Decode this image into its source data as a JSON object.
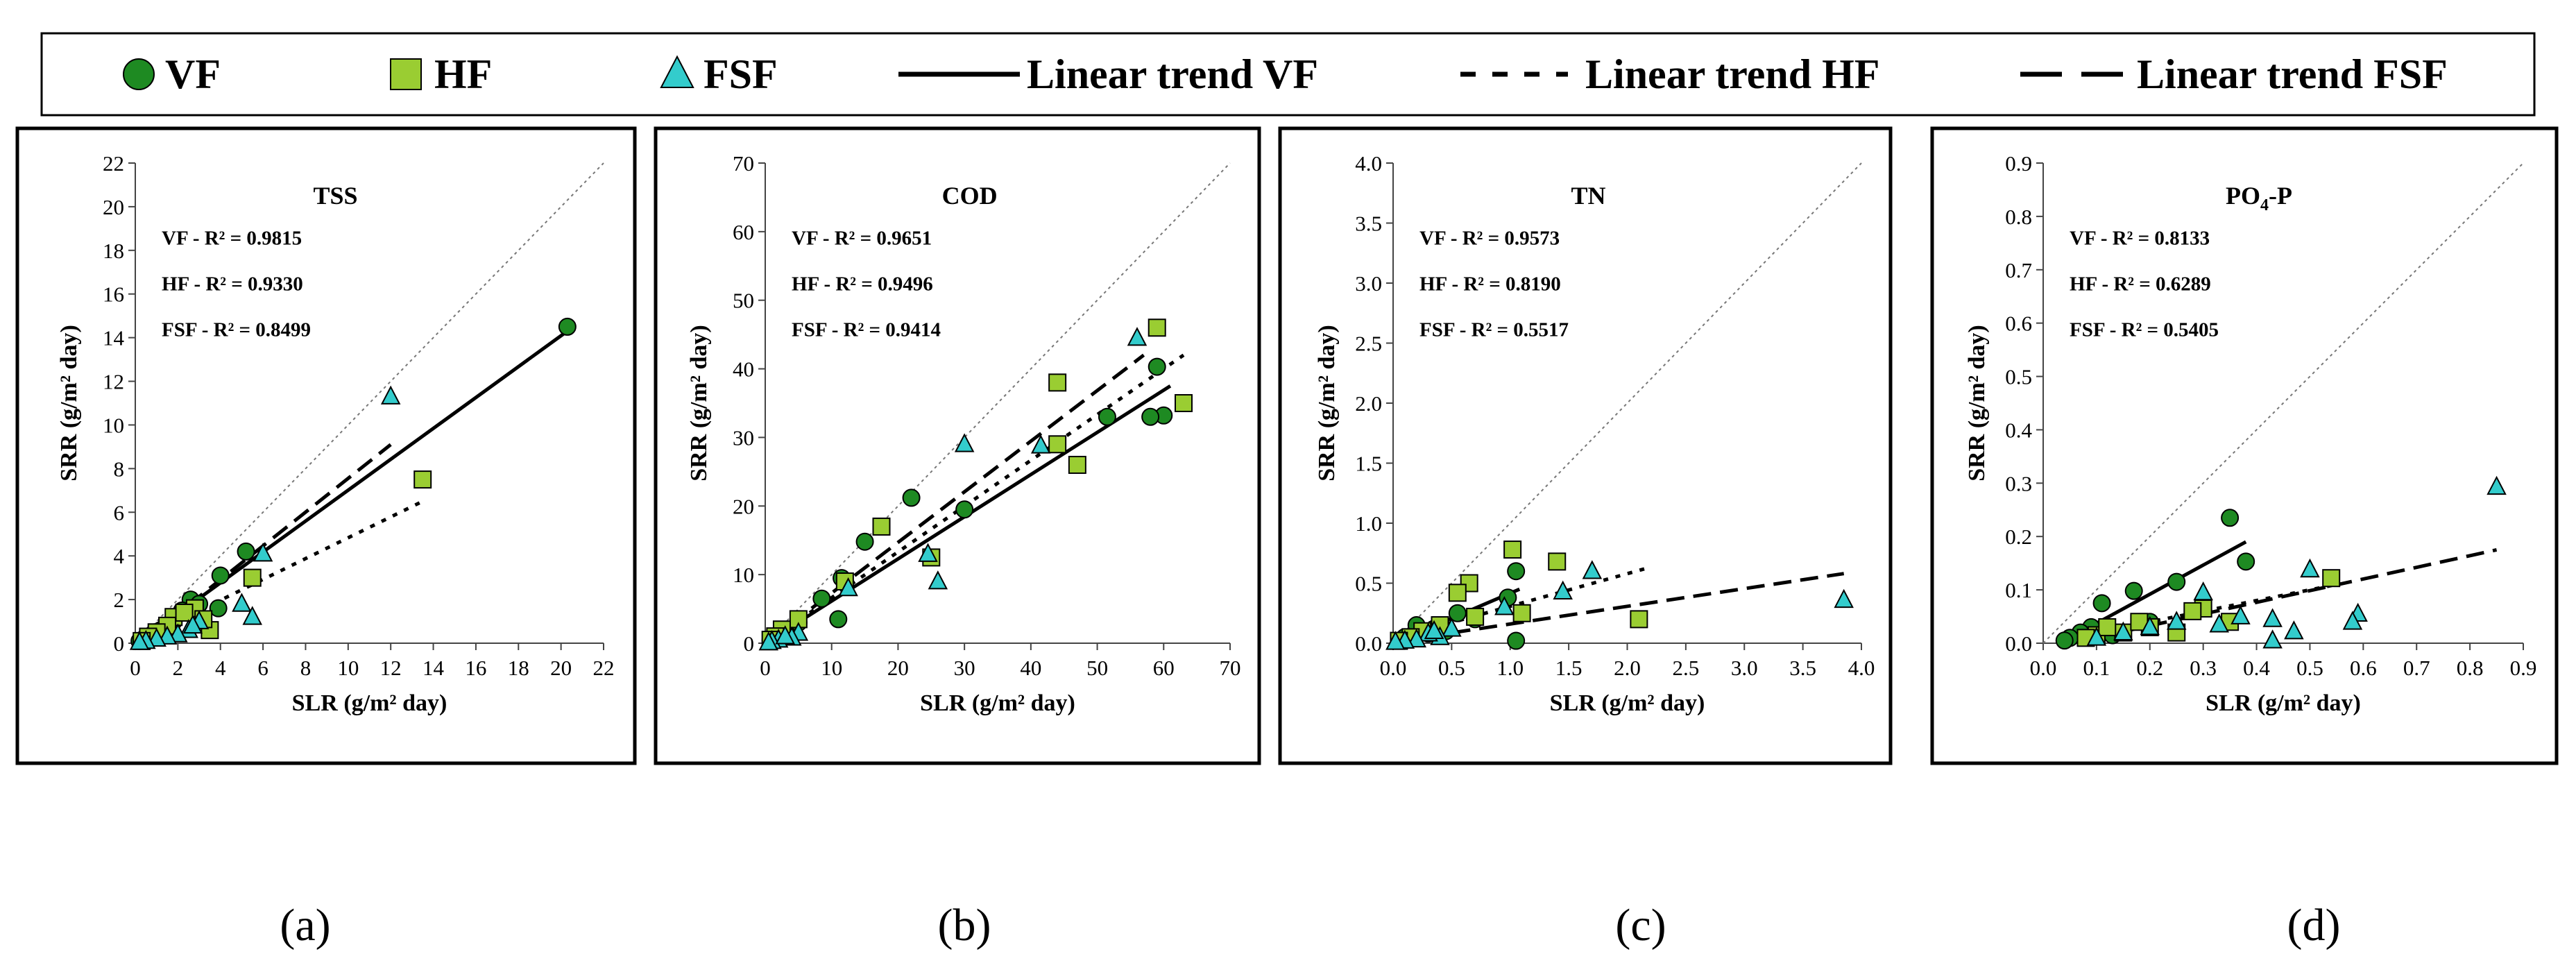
{
  "legend": {
    "items": [
      {
        "label": "VF",
        "kind": "marker",
        "shape": "circle",
        "fill": "#1e8a22"
      },
      {
        "label": "HF",
        "kind": "marker",
        "shape": "square",
        "fill": "#9acd32"
      },
      {
        "label": "FSF",
        "kind": "marker",
        "shape": "triangle",
        "fill": "#33cccc"
      },
      {
        "label": "Linear trend VF",
        "kind": "line",
        "dash": "solid"
      },
      {
        "label": "Linear trend HF",
        "kind": "line",
        "dash": "dotted"
      },
      {
        "label": "Linear trend FSF",
        "kind": "line",
        "dash": "dashed"
      }
    ]
  },
  "colors": {
    "vf": "#1e8a22",
    "hf": "#9acd32",
    "fsf": "#33cccc",
    "stroke": "#000000"
  },
  "panel_labels": [
    "(a)",
    "(b)",
    "(c)",
    "(d)"
  ],
  "chart_data": [
    {
      "type": "scatter",
      "title": "TSS",
      "xlabel": "SLR (g/m² day)",
      "ylabel": "SRR (g/m² day)",
      "xlim": [
        0,
        22
      ],
      "ylim": [
        0,
        22
      ],
      "xticks": [
        "0",
        "2",
        "4",
        "6",
        "8",
        "10",
        "12",
        "14",
        "16",
        "18",
        "20",
        "22"
      ],
      "yticks": [
        "0",
        "2",
        "4",
        "6",
        "8",
        "10",
        "12",
        "14",
        "16",
        "18",
        "20",
        "22"
      ],
      "r2": [
        "VF - R² = 0.9815",
        "HF - R² = 0.9330",
        "FSF - R² = 0.8499"
      ],
      "series": [
        {
          "name": "VF",
          "points": [
            [
              20.3,
              14.5
            ],
            [
              5.2,
              4.2
            ],
            [
              4.0,
              3.1
            ],
            [
              2.6,
              2.0
            ],
            [
              2.2,
              1.5
            ],
            [
              3.9,
              1.6
            ],
            [
              1.8,
              1.0
            ],
            [
              1.2,
              0.6
            ],
            [
              0.8,
              0.4
            ],
            [
              0.4,
              0.2
            ],
            [
              0.2,
              0.1
            ],
            [
              1.5,
              0.8
            ],
            [
              3.0,
              1.8
            ]
          ]
        },
        {
          "name": "HF",
          "points": [
            [
              13.5,
              7.5
            ],
            [
              5.5,
              3.0
            ],
            [
              3.5,
              0.6
            ],
            [
              2.8,
              1.6
            ],
            [
              1.8,
              1.2
            ],
            [
              1.5,
              0.8
            ],
            [
              2.3,
              1.4
            ],
            [
              1.0,
              0.5
            ],
            [
              0.6,
              0.3
            ],
            [
              0.3,
              0.1
            ],
            [
              3.2,
              1.1
            ]
          ]
        },
        {
          "name": "FSF",
          "points": [
            [
              12.0,
              11.3
            ],
            [
              6.0,
              4.1
            ],
            [
              5.0,
              1.8
            ],
            [
              5.5,
              1.2
            ],
            [
              2.5,
              0.6
            ],
            [
              2.0,
              0.4
            ],
            [
              1.5,
              0.3
            ],
            [
              1.0,
              0.2
            ],
            [
              0.5,
              0.1
            ],
            [
              0.2,
              0.05
            ],
            [
              3.0,
              1.0
            ],
            [
              2.7,
              0.8
            ]
          ]
        }
      ],
      "trends": [
        {
          "name": "Linear trend VF",
          "x": [
            0.8,
            20.3
          ],
          "y": [
            0.5,
            14.3
          ]
        },
        {
          "name": "Linear trend HF",
          "x": [
            0.5,
            13.5
          ],
          "y": [
            0.3,
            6.5
          ]
        },
        {
          "name": "Linear trend FSF",
          "x": [
            0.5,
            12.0
          ],
          "y": [
            0.2,
            9.1
          ]
        }
      ]
    },
    {
      "type": "scatter",
      "title": "COD",
      "xlabel": "SLR (g/m² day)",
      "ylabel": "SRR (g/m² day)",
      "xlim": [
        0,
        70
      ],
      "ylim": [
        0,
        70
      ],
      "xticks": [
        "0",
        "10",
        "20",
        "30",
        "40",
        "50",
        "60",
        "70"
      ],
      "yticks": [
        "0",
        "10",
        "20",
        "30",
        "40",
        "50",
        "60",
        "70"
      ],
      "r2": [
        "VF - R² = 0.9651",
        "HF - R² = 0.9496",
        "FSF - R² = 0.9414"
      ],
      "series": [
        {
          "name": "VF",
          "points": [
            [
              59,
              40.3
            ],
            [
              60,
              33.2
            ],
            [
              58,
              33.0
            ],
            [
              51.5,
              33.0
            ],
            [
              30,
              19.5
            ],
            [
              22,
              21.2
            ],
            [
              15,
              14.8
            ],
            [
              11.5,
              9.5
            ],
            [
              11,
              3.5
            ],
            [
              8.5,
              6.5
            ],
            [
              5,
              3.0
            ],
            [
              3,
              1.8
            ],
            [
              1.5,
              0.8
            ],
            [
              0.8,
              0.4
            ]
          ]
        },
        {
          "name": "HF",
          "points": [
            [
              59,
              46
            ],
            [
              63,
              35
            ],
            [
              44,
              38
            ],
            [
              44,
              29
            ],
            [
              47,
              26
            ],
            [
              17.5,
              17
            ],
            [
              12,
              9
            ],
            [
              5,
              3.5
            ],
            [
              2.5,
              2.0
            ],
            [
              1.5,
              1.0
            ],
            [
              0.8,
              0.5
            ],
            [
              25,
              12.5
            ]
          ]
        },
        {
          "name": "FSF",
          "points": [
            [
              56,
              44.5
            ],
            [
              41.5,
              28.8
            ],
            [
              30,
              29
            ],
            [
              26,
              9
            ],
            [
              24.5,
              13
            ],
            [
              12.5,
              8
            ],
            [
              5,
              1.5
            ],
            [
              4,
              0.8
            ],
            [
              2,
              0.5
            ],
            [
              1,
              0.3
            ],
            [
              0.5,
              0.1
            ],
            [
              3,
              1.0
            ]
          ]
        }
      ],
      "trends": [
        {
          "name": "Linear trend VF",
          "x": [
            0.5,
            61
          ],
          "y": [
            0.3,
            37.5
          ]
        },
        {
          "name": "Linear trend HF",
          "x": [
            0.5,
            63
          ],
          "y": [
            0.3,
            42
          ]
        },
        {
          "name": "Linear trend FSF",
          "x": [
            0.5,
            57
          ],
          "y": [
            0.3,
            42
          ]
        }
      ]
    },
    {
      "type": "scatter",
      "title": "TN",
      "xlabel": "SLR (g/m² day)",
      "ylabel": "SRR (g/m² day)",
      "xlim": [
        0,
        4
      ],
      "ylim": [
        0,
        4
      ],
      "xticks": [
        "0.0",
        "0.5",
        "1.0",
        "1.5",
        "2.0",
        "2.5",
        "3.0",
        "3.5",
        "4.0"
      ],
      "yticks": [
        "0.0",
        "0.5",
        "1.0",
        "1.5",
        "2.0",
        "2.5",
        "3.0",
        "3.5",
        "4.0"
      ],
      "r2": [
        "VF - R² = 0.9573",
        "HF - R² = 0.8190",
        "FSF - R² = 0.5517"
      ],
      "series": [
        {
          "name": "VF",
          "points": [
            [
              1.05,
              0.6
            ],
            [
              0.98,
              0.38
            ],
            [
              1.05,
              0.02
            ],
            [
              0.55,
              0.25
            ],
            [
              0.35,
              0.12
            ],
            [
              0.2,
              0.15
            ],
            [
              0.1,
              0.05
            ],
            [
              0.05,
              0.02
            ],
            [
              0.45,
              0.1
            ],
            [
              0.3,
              0.08
            ],
            [
              0.7,
              0.2
            ]
          ]
        },
        {
          "name": "HF",
          "points": [
            [
              1.02,
              0.78
            ],
            [
              1.4,
              0.68
            ],
            [
              0.65,
              0.5
            ],
            [
              0.55,
              0.42
            ],
            [
              2.1,
              0.2
            ],
            [
              1.1,
              0.25
            ],
            [
              0.7,
              0.22
            ],
            [
              0.4,
              0.15
            ],
            [
              0.25,
              0.1
            ],
            [
              0.15,
              0.05
            ],
            [
              0.05,
              0.02
            ]
          ]
        },
        {
          "name": "FSF",
          "points": [
            [
              3.85,
              0.36
            ],
            [
              1.7,
              0.6
            ],
            [
              1.45,
              0.43
            ],
            [
              0.95,
              0.3
            ],
            [
              0.5,
              0.12
            ],
            [
              0.4,
              0.05
            ],
            [
              0.3,
              0.08
            ],
            [
              0.2,
              0.03
            ],
            [
              0.1,
              0.02
            ],
            [
              0.02,
              0.01
            ],
            [
              0.35,
              0.1
            ]
          ]
        }
      ],
      "trends": [
        {
          "name": "Linear trend VF",
          "x": [
            0.05,
            1.08
          ],
          "y": [
            0.02,
            0.45
          ]
        },
        {
          "name": "Linear trend HF",
          "x": [
            0.05,
            2.15
          ],
          "y": [
            0.05,
            0.62
          ]
        },
        {
          "name": "Linear trend FSF",
          "x": [
            0.05,
            3.85
          ],
          "y": [
            0.02,
            0.58
          ]
        }
      ]
    },
    {
      "type": "scatter",
      "title": "PO4-P",
      "title_main": "PO",
      "title_sub": "4",
      "title_tail": "-P",
      "xlabel": "SLR (g/m² day)",
      "ylabel": "SRR (g/m² day)",
      "xlim": [
        0,
        0.9
      ],
      "ylim": [
        0,
        0.9
      ],
      "xticks": [
        "0.0",
        "0.1",
        "0.2",
        "0.3",
        "0.4",
        "0.5",
        "0.6",
        "0.7",
        "0.8",
        "0.9"
      ],
      "yticks": [
        "0.0",
        "0.1",
        "0.2",
        "0.3",
        "0.4",
        "0.5",
        "0.6",
        "0.7",
        "0.8",
        "0.9"
      ],
      "r2": [
        "VF - R² = 0.8133",
        "HF - R² = 0.6289",
        "FSF - R² = 0.5405"
      ],
      "series": [
        {
          "name": "VF",
          "points": [
            [
              0.35,
              0.235
            ],
            [
              0.38,
              0.153
            ],
            [
              0.25,
              0.115
            ],
            [
              0.17,
              0.098
            ],
            [
              0.11,
              0.075
            ],
            [
              0.09,
              0.03
            ],
            [
              0.07,
              0.02
            ],
            [
              0.05,
              0.01
            ],
            [
              0.04,
              0.005
            ],
            [
              0.13,
              0.015
            ],
            [
              0.2,
              0.04
            ]
          ]
        },
        {
          "name": "HF",
          "points": [
            [
              0.54,
              0.122
            ],
            [
              0.3,
              0.065
            ],
            [
              0.28,
              0.06
            ],
            [
              0.2,
              0.03
            ],
            [
              0.15,
              0.02
            ],
            [
              0.1,
              0.015
            ],
            [
              0.08,
              0.01
            ],
            [
              0.25,
              0.02
            ],
            [
              0.18,
              0.04
            ],
            [
              0.12,
              0.03
            ],
            [
              0.35,
              0.04
            ]
          ]
        },
        {
          "name": "FSF",
          "points": [
            [
              0.85,
              0.293
            ],
            [
              0.5,
              0.138
            ],
            [
              0.59,
              0.055
            ],
            [
              0.58,
              0.04
            ],
            [
              0.47,
              0.022
            ],
            [
              0.43,
              0.045
            ],
            [
              0.43,
              0.005
            ],
            [
              0.37,
              0.05
            ],
            [
              0.3,
              0.095
            ],
            [
              0.25,
              0.04
            ],
            [
              0.2,
              0.03
            ],
            [
              0.15,
              0.02
            ],
            [
              0.1,
              0.01
            ],
            [
              0.33,
              0.035
            ]
          ]
        }
      ],
      "trends": [
        {
          "name": "Linear trend VF",
          "x": [
            0.05,
            0.38
          ],
          "y": [
            0.01,
            0.19
          ]
        },
        {
          "name": "Linear trend HF",
          "x": [
            0.05,
            0.55
          ],
          "y": [
            0.01,
            0.11
          ]
        },
        {
          "name": "Linear trend FSF",
          "x": [
            0.05,
            0.85
          ],
          "y": [
            0.0,
            0.175
          ]
        }
      ]
    }
  ]
}
